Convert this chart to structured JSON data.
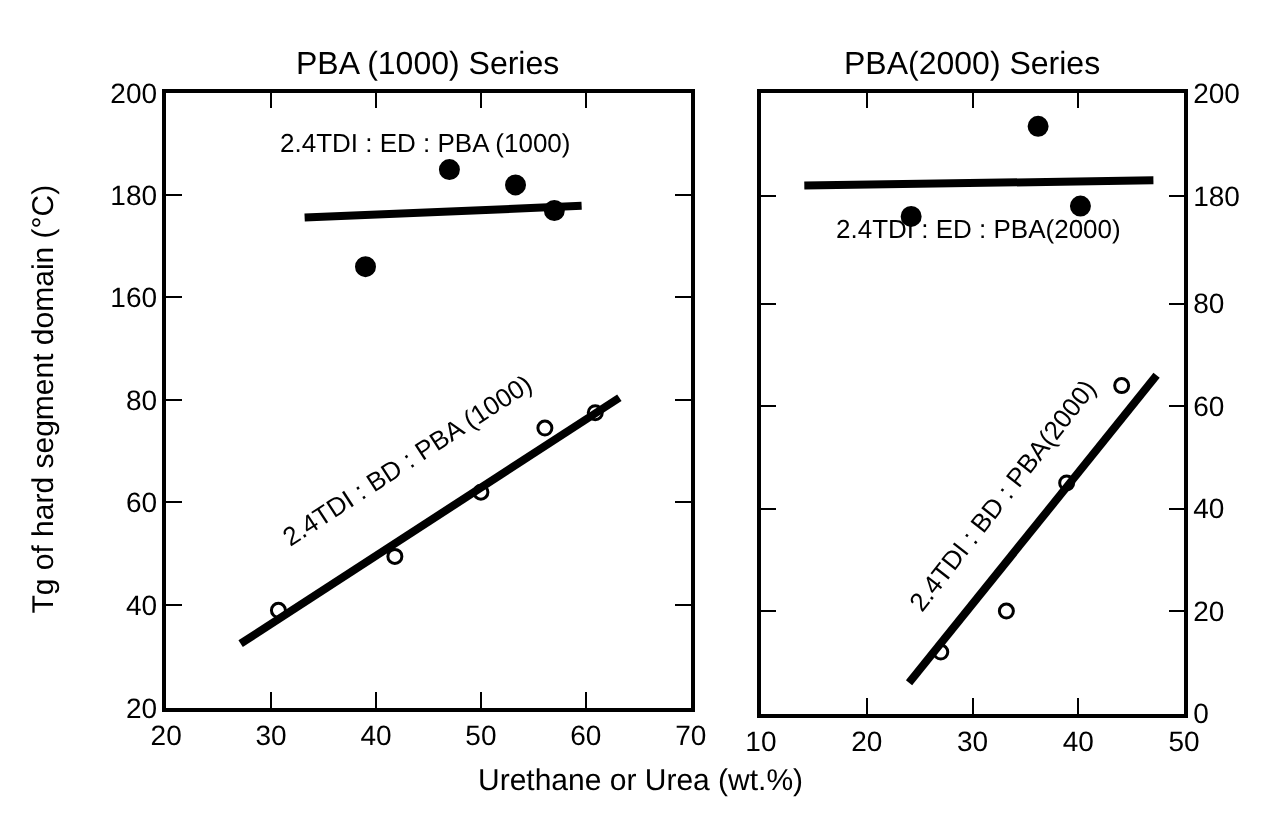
{
  "chart_data": [
    {
      "type": "scatter",
      "title": "PBA (1000) Series",
      "xlim": [
        20,
        70
      ],
      "xticks": [
        20,
        30,
        40,
        50,
        60,
        70
      ],
      "ylim": [
        150,
        200
      ],
      "yticks": [
        160,
        180,
        200
      ],
      "tick_labels": "y",
      "series": [
        {
          "color": "#000000",
          "marker": "circle",
          "x": [
            39.0,
            47.0,
            53.3,
            57.0
          ],
          "values": [
            166,
            185,
            182,
            177
          ]
        },
        {
          "type": "line",
          "name": "2.4TDI : ED : PBA (1000)",
          "color": "#000000",
          "line_style": "solid",
          "x": [
            33.2,
            59.6
          ],
          "values": [
            175.6,
            177.9
          ]
        }
      ]
    },
    {
      "type": "scatter",
      "xlabel": "Urethane or Urea (wt.%)",
      "ylabel": "Tg of hard segment domain (°C)",
      "xlim": [
        20,
        70
      ],
      "xticks": [
        20,
        30,
        40,
        50,
        60,
        70
      ],
      "ylim": [
        20,
        90
      ],
      "yticks": [
        20,
        40,
        60,
        80
      ],
      "series": [
        {
          "color": "#000000",
          "marker": "circle",
          "x": [
            30.7,
            41.8,
            50.0,
            56.1,
            60.9
          ],
          "values": [
            39,
            49.5,
            62,
            74.5,
            77.5
          ]
        },
        {
          "type": "line",
          "name": "2.4TDI : BD : PBA (1000)",
          "color": "#000000",
          "line_style": "solid",
          "x": [
            27.1,
            63.2
          ],
          "values": [
            32.5,
            80.4
          ]
        }
      ]
    },
    {
      "type": "scatter",
      "title": "PBA(2000) Series",
      "xlim": [
        10,
        50
      ],
      "xticks": [
        10,
        20,
        30,
        40,
        50
      ],
      "ylim": [
        172,
        200
      ],
      "yticks": [
        180,
        200
      ],
      "tick_labels": "y",
      "series": [
        {
          "color": "#000000",
          "marker": "circle",
          "x": [
            24.2,
            36.2,
            40.2
          ],
          "values": [
            176,
            193.5,
            178
          ]
        },
        {
          "type": "line",
          "name": "2.4TDI : ED : PBA(2000)",
          "color": "#000000",
          "line_style": "solid",
          "x": [
            14.1,
            47.1
          ],
          "values": [
            182,
            183
          ]
        }
      ]
    },
    {
      "type": "scatter",
      "xlim": [
        10,
        50
      ],
      "xticks": [
        10,
        20,
        30,
        40,
        50
      ],
      "ylim": [
        0,
        93
      ],
      "yticks": [
        0,
        20,
        40,
        60,
        80
      ],
      "series": [
        {
          "color": "#000000",
          "marker": "circle",
          "x": [
            27.0,
            33.2,
            38.9,
            44.1
          ],
          "values": [
            12,
            20,
            45,
            64
          ]
        },
        {
          "type": "line",
          "name": "2.4TDI : BD : PBA(2000)",
          "color": "#000000",
          "line_style": "solid",
          "x": [
            24.0,
            47.4
          ],
          "values": [
            6,
            66
          ]
        }
      ]
    }
  ]
}
